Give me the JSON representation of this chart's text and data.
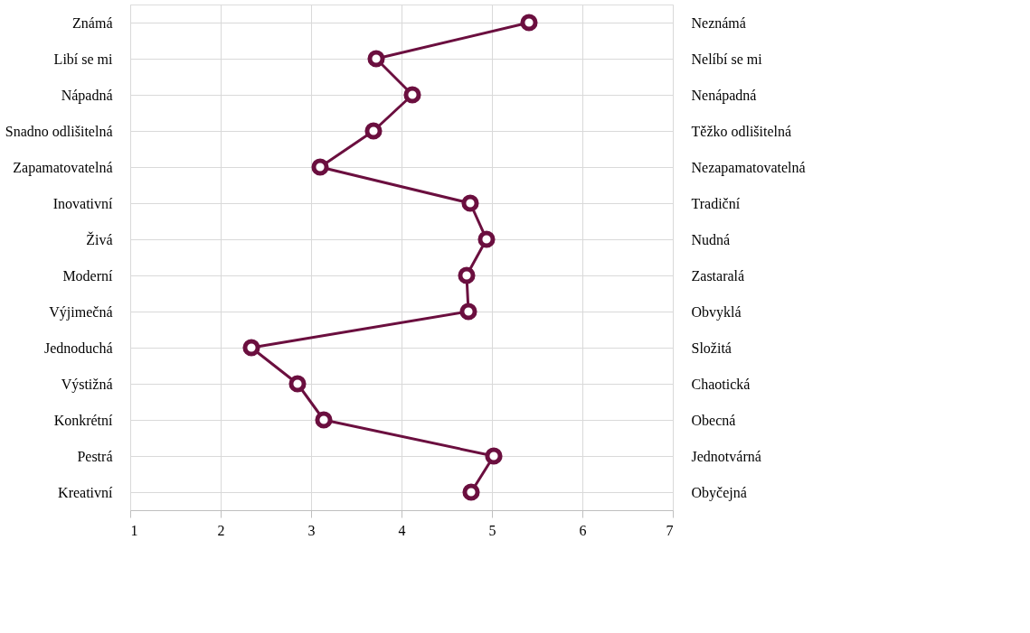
{
  "chart_data": {
    "type": "line",
    "orientation": "horizontal",
    "categories": [
      "Známá",
      "Libí se mi",
      "Nápadná",
      "Snadno odlišitelná",
      "Zapamatovatelná",
      "Inovativní",
      "Živá",
      "Moderní",
      "Výjimečná",
      "Jednoduchá",
      "Výstižná",
      "Konkrétní",
      "Pestrá",
      "Kreativní"
    ],
    "y2_categories": [
      "Neznámá",
      "Nelíbí se mi",
      "Nenápadná",
      "Těžko odlišitelná",
      "Nezapamatovatelná",
      "Tradiční",
      "Nudná",
      "Zastaralá",
      "Obvyklá",
      "Složitá",
      "Chaotická",
      "Obecná",
      "Jednotvárná",
      "Obyčejná"
    ],
    "series": [
      {
        "color": "#6b0f3f",
        "values": [
          5.41,
          3.72,
          4.12,
          3.69,
          3.1,
          4.76,
          4.94,
          4.72,
          4.74,
          2.34,
          2.85,
          3.14,
          5.02,
          4.77
        ]
      }
    ],
    "xlim": [
      1,
      7
    ],
    "xticks": [
      1,
      2,
      3,
      4,
      5,
      6,
      7
    ],
    "grid": true,
    "marker": "circle",
    "line_style": "solid"
  }
}
